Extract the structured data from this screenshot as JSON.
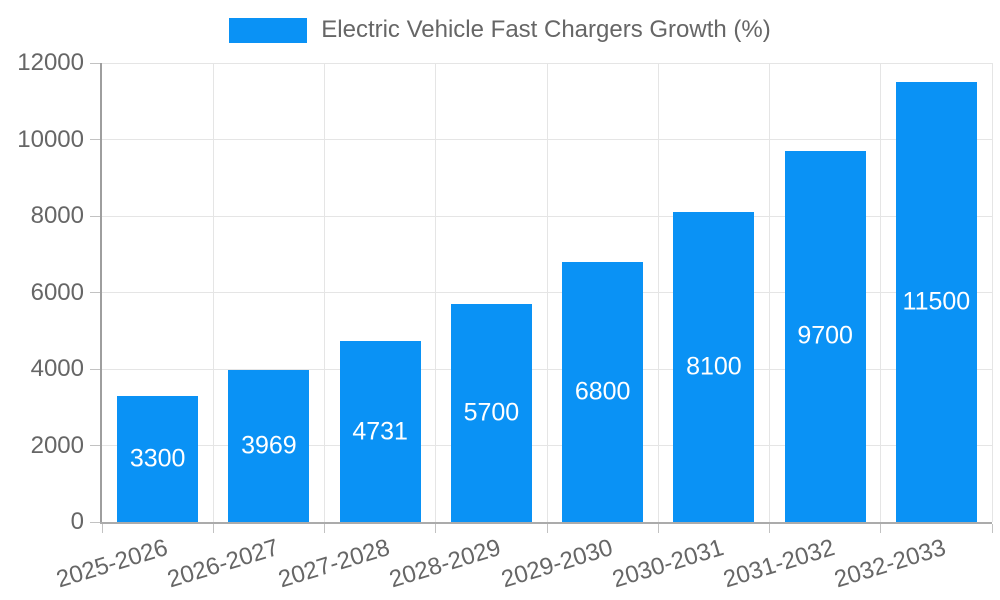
{
  "legend": {
    "label": "Electric Vehicle Fast Chargers Growth (%)"
  },
  "chart_data": {
    "type": "bar",
    "title": "Electric Vehicle Fast Chargers Growth (%)",
    "categories": [
      "2025-2026",
      "2026-2027",
      "2027-2028",
      "2028-2029",
      "2029-2030",
      "2030-2031",
      "2031-2032",
      "2032-2033"
    ],
    "values": [
      3300,
      3969,
      4731,
      5700,
      6800,
      8100,
      9700,
      11500
    ],
    "value_labels": [
      "3300",
      "3969",
      "4731",
      "5700",
      "6800",
      "8100",
      "9700",
      "11500"
    ],
    "xlabel": "",
    "ylabel": "",
    "ylim": [
      0,
      12000
    ],
    "yticks": [
      0,
      2000,
      4000,
      6000,
      8000,
      10000,
      12000
    ],
    "ytick_labels": [
      "0",
      "2000",
      "4000",
      "6000",
      "8000",
      "10000",
      "12000"
    ],
    "grid": true,
    "legend_position": "top",
    "x_label_rotation_deg": -17,
    "colors": {
      "bar": "#0a92f5",
      "value_label": "#ffffff",
      "axis_text": "#666666",
      "grid_line": "#e5e5e5",
      "axis_line": "#9e9e9e"
    }
  }
}
